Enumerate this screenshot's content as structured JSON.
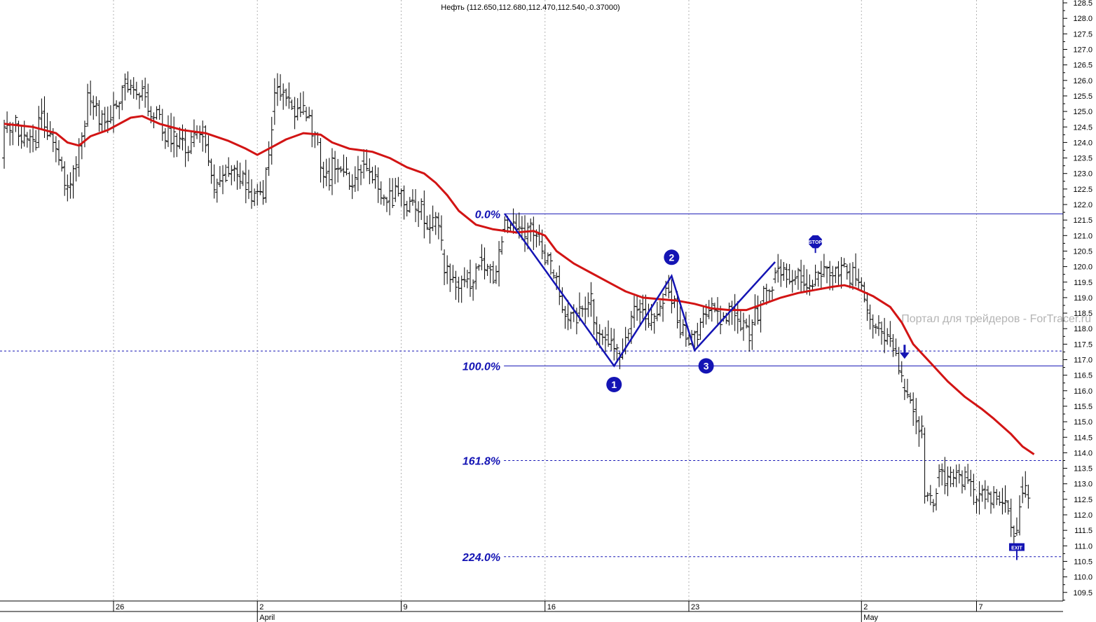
{
  "chart_data": {
    "type": "ohlc",
    "title": "Нефть (112.650,112.680,112.470,112.540,-0.37000)",
    "watermark": "Портал для трейдеров - ForTracer.ru",
    "ylim": [
      109.2,
      129.0
    ],
    "y_ticks": [
      109.5,
      110.0,
      110.5,
      111.0,
      111.5,
      112.0,
      112.5,
      113.0,
      113.5,
      114.0,
      114.5,
      115.0,
      115.5,
      116.0,
      116.5,
      117.0,
      117.5,
      118.0,
      118.5,
      119.0,
      119.5,
      120.0,
      120.5,
      121.0,
      121.5,
      122.0,
      122.5,
      123.0,
      123.5,
      124.0,
      124.5,
      125.0,
      125.5,
      126.0,
      126.5,
      127.0,
      127.5,
      128.0,
      128.5
    ],
    "x_ticks": [
      {
        "label": "26",
        "bar": 38
      },
      {
        "label": "2",
        "bar": 88
      },
      {
        "label": "9",
        "bar": 138
      },
      {
        "label": "16",
        "bar": 188
      },
      {
        "label": "23",
        "bar": 238
      },
      {
        "label": "2",
        "bar": 298
      },
      {
        "label": "7",
        "bar": 338
      }
    ],
    "month_labels": [
      {
        "label": "April",
        "bar": 88
      },
      {
        "label": "May",
        "bar": 298
      }
    ],
    "grid": true,
    "price_path": [
      [
        0,
        123.5,
        124.5
      ],
      [
        5,
        124.6,
        124.2
      ],
      [
        12,
        124.0,
        124.8
      ],
      [
        18,
        124.0,
        123.8
      ],
      [
        22,
        122.5,
        122.6
      ],
      [
        26,
        123.2,
        123.9
      ],
      [
        29,
        124.6,
        125.6
      ],
      [
        33,
        125.2,
        124.6
      ],
      [
        38,
        124.8,
        125.2
      ],
      [
        43,
        125.9,
        125.7
      ],
      [
        50,
        125.6,
        125.0
      ],
      [
        55,
        124.6,
        124.3
      ],
      [
        60,
        124.2,
        123.9
      ],
      [
        66,
        124.0,
        124.3
      ],
      [
        70,
        124.5,
        123.9
      ],
      [
        74,
        122.4,
        122.7
      ],
      [
        78,
        123.2,
        123.0
      ],
      [
        85,
        122.7,
        122.4
      ],
      [
        90,
        122.4,
        122.2
      ],
      [
        94,
        125.0,
        125.6
      ],
      [
        100,
        125.3,
        125.1
      ],
      [
        105,
        125.0,
        124.8
      ],
      [
        110,
        124.0,
        123.2
      ],
      [
        114,
        122.8,
        123.5
      ],
      [
        120,
        123.0,
        122.6
      ],
      [
        125,
        123.4,
        123.3
      ],
      [
        130,
        122.9,
        122.5
      ],
      [
        136,
        122.2,
        122.6
      ],
      [
        140,
        122.0,
        121.8
      ],
      [
        146,
        122.0,
        121.4
      ],
      [
        150,
        121.3,
        121.6
      ],
      [
        153,
        120.4,
        119.8
      ],
      [
        158,
        119.5,
        119.3
      ],
      [
        162,
        119.8,
        119.3
      ],
      [
        166,
        120.3,
        120.2
      ],
      [
        170,
        120.0,
        119.5
      ],
      [
        174,
        121.2,
        121.5
      ],
      [
        178,
        121.4,
        121.2
      ],
      [
        183,
        121.3,
        121.4
      ],
      [
        187,
        120.8,
        120.5
      ],
      [
        191,
        119.8,
        119.7
      ],
      [
        195,
        118.6,
        118.4
      ],
      [
        200,
        118.5,
        118.7
      ],
      [
        205,
        118.9,
        118.2
      ],
      [
        210,
        117.8,
        117.5
      ],
      [
        214,
        117.2,
        117.1
      ],
      [
        218,
        118.0,
        118.4
      ],
      [
        222,
        118.8,
        118.6
      ],
      [
        226,
        118.2,
        118.4
      ],
      [
        230,
        119.1,
        119.3
      ],
      [
        234,
        118.9,
        118.2
      ],
      [
        238,
        117.7,
        117.5
      ],
      [
        242,
        117.8,
        118.2
      ],
      [
        246,
        118.6,
        118.8
      ],
      [
        250,
        118.3,
        118.4
      ],
      [
        255,
        118.5,
        118.3
      ],
      [
        260,
        117.8,
        118.2
      ],
      [
        264,
        118.9,
        119.3
      ],
      [
        268,
        119.6,
        119.8
      ],
      [
        273,
        119.9,
        119.5
      ],
      [
        278,
        119.7,
        119.4
      ],
      [
        283,
        119.6,
        119.8
      ],
      [
        288,
        119.8,
        119.7
      ],
      [
        293,
        120.0,
        119.8
      ],
      [
        298,
        119.5,
        119.4
      ],
      [
        301,
        118.5,
        118.3
      ],
      [
        305,
        118.0,
        117.9
      ],
      [
        309,
        117.6,
        117.3
      ],
      [
        313,
        116.1,
        116.0
      ],
      [
        317,
        115.4,
        115.0
      ],
      [
        320,
        114.6,
        112.6
      ],
      [
        323,
        112.4,
        112.3
      ],
      [
        325,
        113.2,
        113.4
      ],
      [
        330,
        113.0,
        113.2
      ],
      [
        335,
        113.2,
        113.1
      ],
      [
        338,
        112.4,
        112.5
      ],
      [
        342,
        112.8,
        112.7
      ],
      [
        346,
        112.6,
        112.4
      ],
      [
        350,
        112.2,
        111.6
      ],
      [
        352,
        111.4,
        111.5
      ],
      [
        354,
        112.9,
        112.7
      ],
      [
        356,
        112.65,
        112.54
      ]
    ],
    "moving_average": {
      "color": "#d21414",
      "points": [
        [
          0,
          124.6
        ],
        [
          10,
          124.5
        ],
        [
          18,
          124.3
        ],
        [
          22,
          124.0
        ],
        [
          26,
          123.9
        ],
        [
          30,
          124.2
        ],
        [
          36,
          124.4
        ],
        [
          44,
          124.8
        ],
        [
          48,
          124.85
        ],
        [
          54,
          124.6
        ],
        [
          62,
          124.4
        ],
        [
          70,
          124.3
        ],
        [
          78,
          124.05
        ],
        [
          84,
          123.8
        ],
        [
          88,
          123.6
        ],
        [
          92,
          123.8
        ],
        [
          98,
          124.1
        ],
        [
          104,
          124.3
        ],
        [
          110,
          124.25
        ],
        [
          114,
          124.0
        ],
        [
          120,
          123.8
        ],
        [
          128,
          123.7
        ],
        [
          134,
          123.5
        ],
        [
          140,
          123.2
        ],
        [
          146,
          123.0
        ],
        [
          150,
          122.7
        ],
        [
          154,
          122.3
        ],
        [
          158,
          121.8
        ],
        [
          164,
          121.35
        ],
        [
          170,
          121.2
        ],
        [
          178,
          121.1
        ],
        [
          184,
          121.15
        ],
        [
          188,
          121.0
        ],
        [
          192,
          120.5
        ],
        [
          198,
          120.1
        ],
        [
          204,
          119.8
        ],
        [
          210,
          119.5
        ],
        [
          216,
          119.2
        ],
        [
          222,
          119.0
        ],
        [
          228,
          118.95
        ],
        [
          234,
          118.9
        ],
        [
          240,
          118.8
        ],
        [
          246,
          118.65
        ],
        [
          252,
          118.6
        ],
        [
          258,
          118.6
        ],
        [
          264,
          118.8
        ],
        [
          270,
          119.0
        ],
        [
          276,
          119.15
        ],
        [
          282,
          119.25
        ],
        [
          288,
          119.35
        ],
        [
          292,
          119.4
        ],
        [
          296,
          119.3
        ],
        [
          302,
          119.05
        ],
        [
          308,
          118.7
        ],
        [
          312,
          118.2
        ],
        [
          316,
          117.5
        ],
        [
          322,
          116.9
        ],
        [
          328,
          116.3
        ],
        [
          334,
          115.8
        ],
        [
          340,
          115.4
        ],
        [
          344,
          115.1
        ],
        [
          350,
          114.6
        ],
        [
          354,
          114.2
        ],
        [
          358,
          113.95
        ]
      ]
    },
    "zigzag": {
      "color": "#1414b4",
      "points": [
        [
          174,
          121.7
        ],
        [
          212,
          116.8
        ],
        [
          232,
          119.7
        ],
        [
          240,
          117.3
        ],
        [
          268,
          120.15
        ]
      ]
    },
    "fib_levels": [
      {
        "label": "0.0%",
        "value": 121.7,
        "style": "solid",
        "label_bar": 173
      },
      {
        "label": "100.0%",
        "value": 116.8,
        "style": "solid",
        "label_bar": 173
      },
      {
        "label": "161.8%",
        "value": 113.75,
        "style": "dashed",
        "label_bar": 173
      },
      {
        "label": "224.0%",
        "value": 110.65,
        "style": "dashed",
        "label_bar": 173
      }
    ],
    "reference_line": {
      "value": 117.28,
      "style": "dashed"
    },
    "wave_labels": [
      {
        "label": "1",
        "bar": 212,
        "value": 116.2
      },
      {
        "label": "2",
        "bar": 232,
        "value": 120.3
      },
      {
        "label": "3",
        "bar": 244,
        "value": 116.8
      }
    ],
    "signals": [
      {
        "label": "STOP",
        "bar": 282,
        "value": 120.8,
        "kind": "stop"
      },
      {
        "label": "EXIT",
        "bar": 352,
        "value": 110.95,
        "kind": "exit"
      }
    ],
    "entry_arrow": {
      "bar": 313,
      "value": 117.3
    },
    "colors": {
      "price_bars": "#000000",
      "moving_average": "#d21414",
      "zigzag": "#1414b4",
      "fib": "#1414b4",
      "grid": "#b4b4b4"
    }
  }
}
